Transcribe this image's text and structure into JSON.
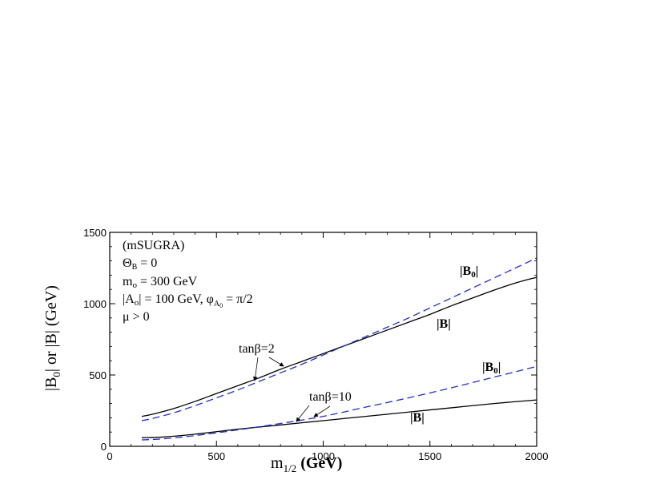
{
  "chart_data": {
    "type": "line",
    "xlabel": "m",
    "xlabel_sub": "1/2",
    "xlabel_unit": " (GeV)",
    "ylabel": "|B",
    "ylabel_sub": "0",
    "ylabel_rest": "| or |B| (GeV)",
    "xlim": [
      0,
      2000
    ],
    "ylim": [
      0,
      1500
    ],
    "xticks": [
      0,
      500,
      1000,
      1500,
      2000
    ],
    "yticks": [
      0,
      500,
      1000,
      1500
    ],
    "grid": false,
    "annotations": {
      "line1": "(mSUGRA)",
      "line2_main": "Θ",
      "line2_sub": "B",
      "line2_rest": " = 0",
      "line3_main": "m",
      "line3_sub": "o",
      "line3_rest": " = 300 GeV",
      "line4_a": "|A",
      "line4_a_sub": "o",
      "line4_b": "| = 100 GeV,   φ",
      "line4_c_sub": "A",
      "line4_c_subsub": "0",
      "line4_d": " = π/2",
      "line5": "μ > 0",
      "tanb2": "tanβ=2",
      "tanb10": "tanβ=10",
      "B0_upper": "|B",
      "B0_upper_sub": "0",
      "B0_upper_end": "|",
      "B_upper": "|B|",
      "B0_lower": "|B",
      "B0_lower_sub": "0",
      "B0_lower_end": "|",
      "B_lower": "|B|"
    },
    "series": [
      {
        "style": "solid",
        "color": "#000000",
        "x": [
          150,
          200,
          300,
          400,
          500,
          600,
          700,
          800,
          900,
          1000,
          1100,
          1200,
          1300,
          1400,
          1500,
          1600,
          1700,
          1800,
          1900,
          2000
        ],
        "values": [
          210,
          225,
          265,
          315,
          370,
          425,
          480,
          540,
          595,
          650,
          705,
          760,
          815,
          870,
          925,
          985,
          1040,
          1095,
          1145,
          1185
        ]
      },
      {
        "style": "dashed",
        "color": "#1f2fd0",
        "x": [
          150,
          200,
          300,
          400,
          500,
          600,
          700,
          800,
          900,
          1000,
          1100,
          1200,
          1300,
          1400,
          1500,
          1600,
          1700,
          1800,
          1900,
          2000
        ],
        "values": [
          180,
          195,
          235,
          285,
          340,
          395,
          455,
          515,
          575,
          640,
          705,
          770,
          835,
          900,
          970,
          1040,
          1110,
          1180,
          1250,
          1320
        ]
      },
      {
        "style": "solid",
        "color": "#000000",
        "x": [
          150,
          250,
          400,
          600,
          800,
          1000,
          1200,
          1400,
          1600,
          1800,
          2000
        ],
        "values": [
          60,
          65,
          85,
          120,
          150,
          180,
          210,
          240,
          270,
          300,
          325
        ]
      },
      {
        "style": "dashed",
        "color": "#1f2fd0",
        "x": [
          150,
          250,
          400,
          600,
          800,
          1000,
          1200,
          1400,
          1600,
          1800,
          2000
        ],
        "values": [
          45,
          52,
          75,
          115,
          160,
          210,
          275,
          340,
          410,
          485,
          560
        ]
      }
    ]
  }
}
